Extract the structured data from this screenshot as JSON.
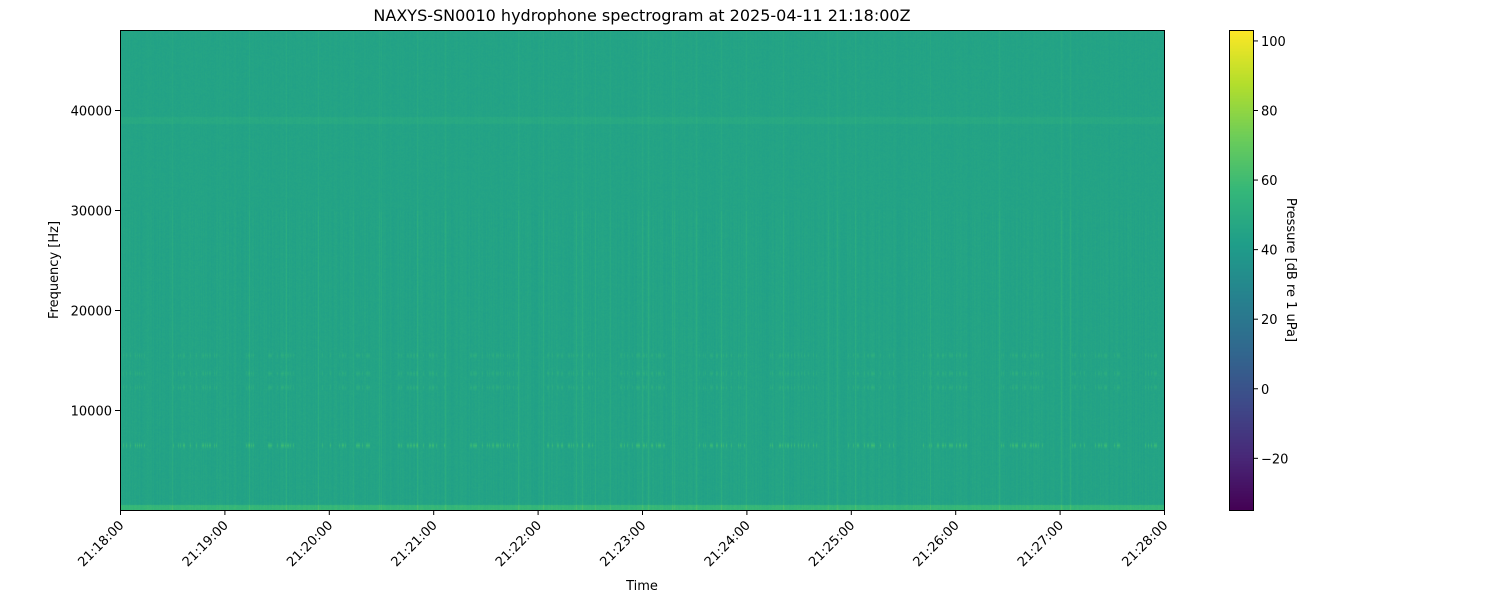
{
  "chart_data": {
    "type": "heatmap",
    "title": "NAXYS-SN0010 hydrophone spectrogram at 2025-04-11 21:18:00Z",
    "xlabel": "Time",
    "ylabel": "Frequency [Hz]",
    "x_ticks": [
      "21:18:00",
      "21:19:00",
      "21:20:00",
      "21:21:00",
      "21:22:00",
      "21:23:00",
      "21:24:00",
      "21:25:00",
      "21:26:00",
      "21:27:00",
      "21:28:00"
    ],
    "xlim": [
      "21:18:00",
      "21:28:00"
    ],
    "y_ticks": [
      10000,
      20000,
      30000,
      40000
    ],
    "ylim": [
      0,
      48000
    ],
    "colormap": "viridis",
    "colorbar": {
      "label": "Pressure [dB re 1 uPa]",
      "ticks": [
        -20,
        0,
        20,
        40,
        60,
        80,
        100
      ],
      "range": [
        -35,
        103
      ]
    },
    "background_level_db": 45,
    "tonal_bands_hz": [
      6500,
      12300,
      13700,
      15500,
      39000
    ],
    "grid": false
  }
}
